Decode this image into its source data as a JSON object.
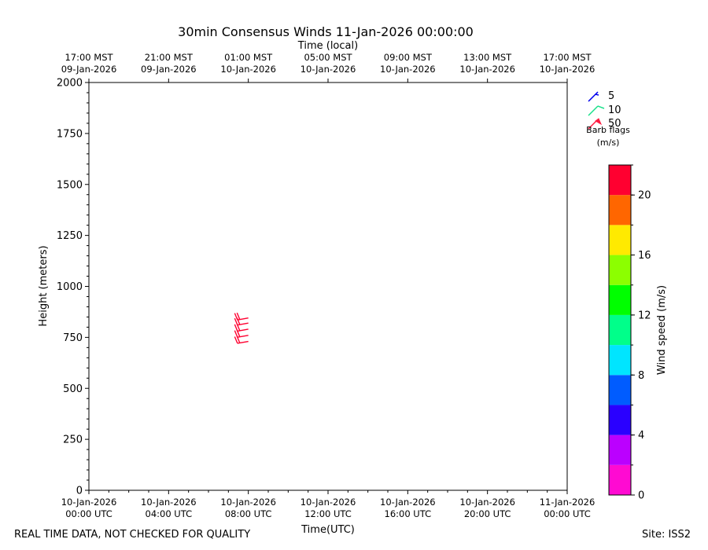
{
  "chart_data": {
    "type": "wind_barb_profile",
    "title": "30min Consensus Winds 11-Jan-2026 00:00:00",
    "top_axis_label": "Time (local)",
    "xlabel": "Time(UTC)",
    "ylabel": "Height (meters)",
    "x_range_hours": [
      0,
      24
    ],
    "ylim": [
      0,
      2000
    ],
    "y_ticks": [
      0,
      250,
      500,
      750,
      1000,
      1250,
      1500,
      1750,
      2000
    ],
    "x_ticks_utc": [
      {
        "hour": 0,
        "line1": "10-Jan-2026",
        "line2": "00:00 UTC"
      },
      {
        "hour": 4,
        "line1": "10-Jan-2026",
        "line2": "04:00 UTC"
      },
      {
        "hour": 8,
        "line1": "10-Jan-2026",
        "line2": "08:00 UTC"
      },
      {
        "hour": 12,
        "line1": "10-Jan-2026",
        "line2": "12:00 UTC"
      },
      {
        "hour": 16,
        "line1": "10-Jan-2026",
        "line2": "16:00 UTC"
      },
      {
        "hour": 20,
        "line1": "10-Jan-2026",
        "line2": "20:00 UTC"
      },
      {
        "hour": 24,
        "line1": "11-Jan-2026",
        "line2": "00:00 UTC"
      }
    ],
    "x_ticks_local": [
      {
        "hour": 0,
        "line1": "17:00 MST",
        "line2": "09-Jan-2026"
      },
      {
        "hour": 4,
        "line1": "21:00 MST",
        "line2": "09-Jan-2026"
      },
      {
        "hour": 8,
        "line1": "01:00 MST",
        "line2": "10-Jan-2026"
      },
      {
        "hour": 12,
        "line1": "05:00 MST",
        "line2": "10-Jan-2026"
      },
      {
        "hour": 16,
        "line1": "09:00 MST",
        "line2": "10-Jan-2026"
      },
      {
        "hour": 20,
        "line1": "13:00 MST",
        "line2": "10-Jan-2026"
      },
      {
        "hour": 24,
        "line1": "17:00 MST",
        "line2": "10-Jan-2026"
      }
    ],
    "barbs": [
      {
        "hour": 8.0,
        "height": 730,
        "speed": 21,
        "direction_deg": 260
      },
      {
        "hour": 8.0,
        "height": 760,
        "speed": 21,
        "direction_deg": 260
      },
      {
        "hour": 8.0,
        "height": 790,
        "speed": 21,
        "direction_deg": 260
      },
      {
        "hour": 8.0,
        "height": 820,
        "speed": 21,
        "direction_deg": 260
      },
      {
        "hour": 8.0,
        "height": 845,
        "speed": 21,
        "direction_deg": 260
      }
    ],
    "legend": {
      "items": [
        {
          "label": "5",
          "speed": 5,
          "color": "#0000ee"
        },
        {
          "label": "10",
          "speed": 10,
          "color": "#19e08a"
        },
        {
          "label": "50",
          "speed": 50,
          "color": "#ff1a40"
        }
      ],
      "caption1": "Barb flags",
      "caption2": "(m/s)"
    },
    "colorbar": {
      "label": "Wind speed (m/s)",
      "min": 0,
      "max": 22,
      "step": 2,
      "colors": [
        "#ff0ad2",
        "#bb00ff",
        "#2a00ff",
        "#005cff",
        "#00e5ff",
        "#00ff8a",
        "#00ff00",
        "#8cff00",
        "#ffea00",
        "#ff6600",
        "#ff0030"
      ],
      "tick_values": [
        0,
        4,
        8,
        12,
        16,
        20
      ]
    }
  },
  "footer": {
    "left": "REAL TIME DATA, NOT CHECKED FOR QUALITY",
    "right": "Site: ISS2"
  }
}
